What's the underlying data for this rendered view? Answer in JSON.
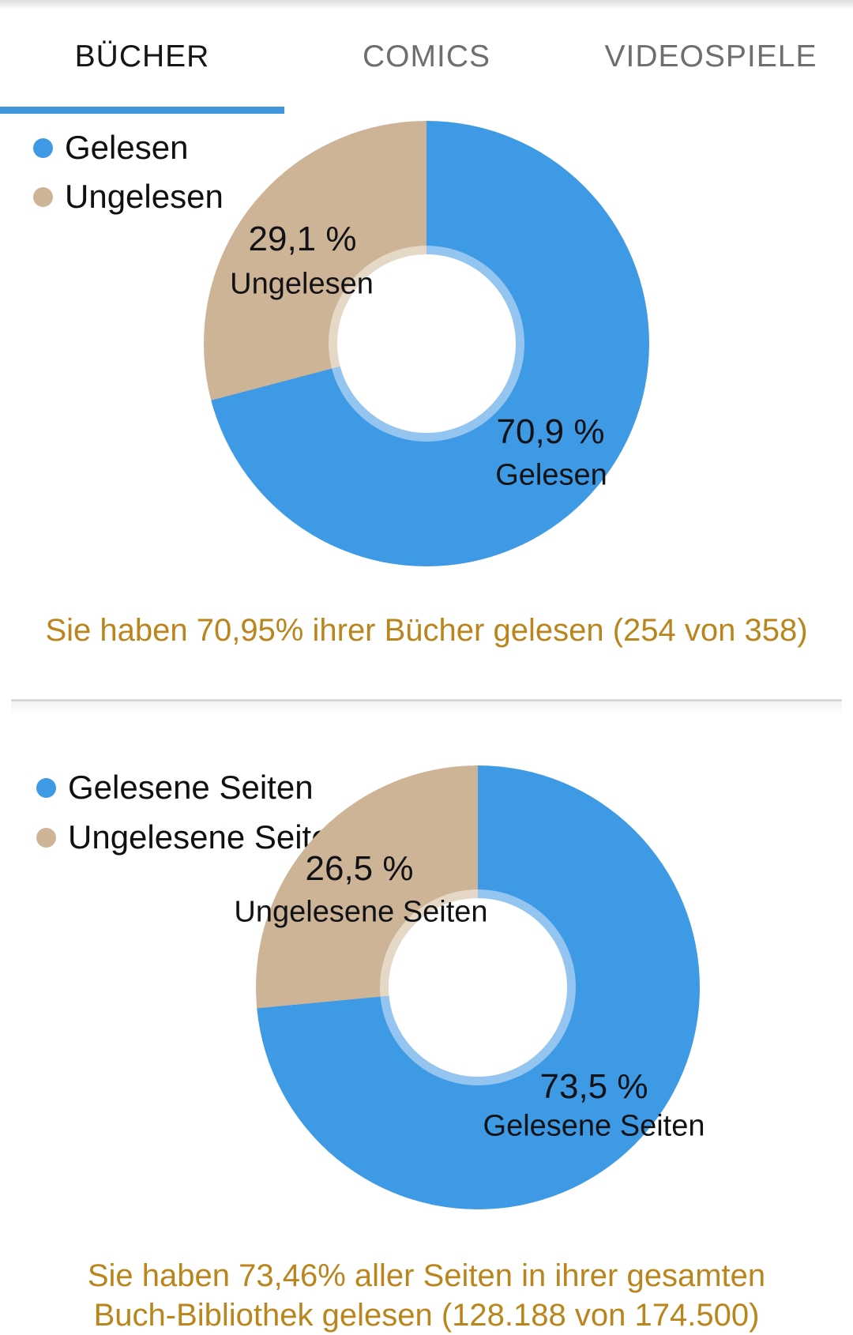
{
  "tabs": {
    "items": [
      {
        "label": "BÜCHER",
        "active": true
      },
      {
        "label": "COMICS",
        "active": false
      },
      {
        "label": "VIDEOSPIELE",
        "active": false
      }
    ],
    "indicator_color": "#4094DB"
  },
  "theme": {
    "background": "#FFFFFF",
    "tab_active_color": "#151515",
    "tab_inactive_color": "#6E6E6E",
    "indicator_color": "#4094DB",
    "slice_read_color": "#3E9AE5",
    "slice_unread_color": "#CEB496",
    "summary_text_color": "#B9851C",
    "label_text_color": "#111215",
    "divider_color": "#D9D9D9"
  },
  "chart_data": [
    {
      "type": "pie",
      "donut": true,
      "start_angle_deg": 0,
      "direction": "clockwise",
      "legend_position": "top-left",
      "labels": [
        "Gelesen",
        "Ungelesen"
      ],
      "values": [
        70.9,
        29.1
      ],
      "pct_labels": [
        "70,9 %",
        "29,1 %"
      ],
      "colors": [
        "#3E9AE5",
        "#CEB496"
      ],
      "inner_ring_colors": [
        "#93C5F0",
        "#E6D8C6"
      ],
      "summary_lines": [
        "Sie haben 70,95% ihrer Bücher gelesen (254 von 358)"
      ]
    },
    {
      "type": "pie",
      "donut": true,
      "start_angle_deg": 0,
      "direction": "clockwise",
      "legend_position": "top-left",
      "labels": [
        "Gelesene Seiten",
        "Ungelesene Seiten"
      ],
      "values": [
        73.5,
        26.5
      ],
      "pct_labels": [
        "73,5 %",
        "26,5 %"
      ],
      "colors": [
        "#3E9AE5",
        "#CEB496"
      ],
      "inner_ring_colors": [
        "#93C5F0",
        "#E6D8C6"
      ],
      "summary_lines": [
        "Sie haben 73,46% aller Seiten in ihrer gesamten",
        "Buch-Bibliothek gelesen (128.188 von 174.500)"
      ]
    }
  ]
}
